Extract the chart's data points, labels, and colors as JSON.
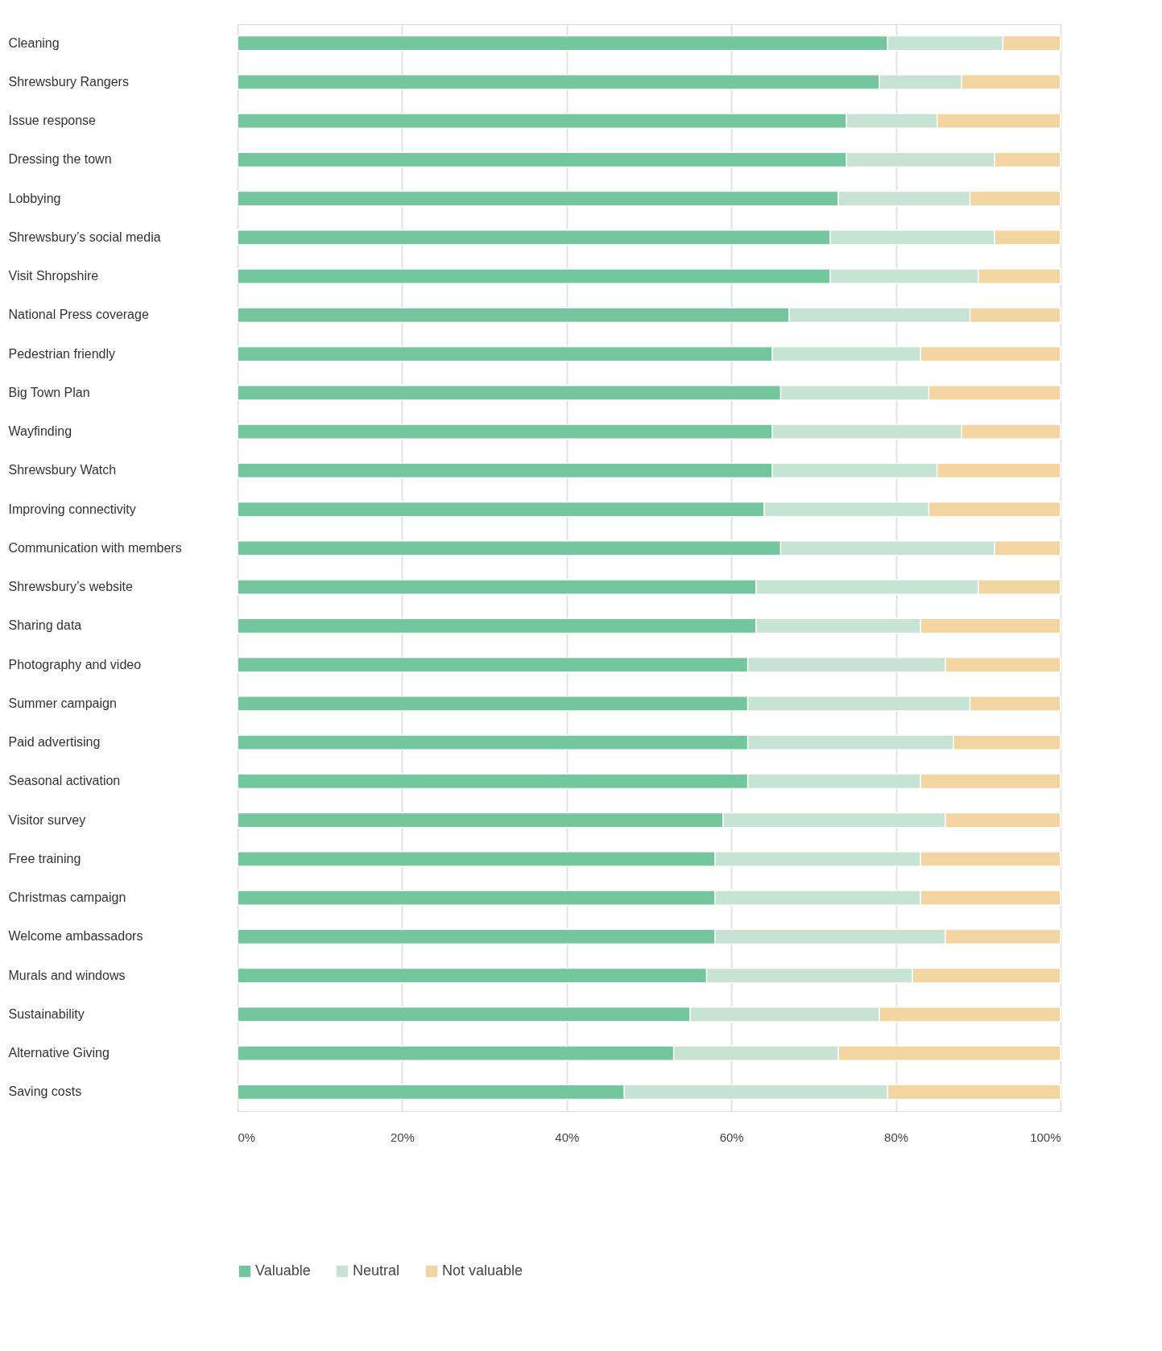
{
  "chart_data": {
    "type": "bar",
    "orientation": "horizontal",
    "stacked": true,
    "categories": [
      "Cleaning",
      "Shrewsbury Rangers",
      "Issue response",
      "Dressing the town",
      "Lobbying",
      "Shrewsbury’s social media",
      "Visit Shropshire",
      "National Press coverage",
      "Pedestrian friendly",
      "Big Town Plan",
      "Wayfinding",
      "Shrewsbury Watch",
      "Improving connectivity",
      "Communication with members",
      "Shrewsbury’s website",
      "Sharing data",
      "Photography and video",
      "Summer campaign",
      "Paid advertising",
      "Seasonal activation",
      "Visitor survey",
      "Free training",
      "Christmas campaign",
      "Welcome ambassadors",
      "Murals and windows",
      "Sustainability",
      "Alternative Giving",
      "Saving costs"
    ],
    "series": [
      {
        "name": "Valuable",
        "color": "#74c69d",
        "values": [
          79,
          78,
          74,
          74,
          73,
          72,
          72,
          67,
          65,
          66,
          65,
          65,
          64,
          66,
          63,
          63,
          62,
          62,
          62,
          62,
          59,
          58,
          58,
          58,
          57,
          55,
          53,
          47
        ]
      },
      {
        "name": "Neutral",
        "color": "#c6e3d3",
        "values": [
          14,
          10,
          11,
          18,
          16,
          20,
          18,
          22,
          18,
          18,
          23,
          20,
          20,
          26,
          27,
          20,
          24,
          27,
          25,
          21,
          27,
          25,
          25,
          28,
          25,
          23,
          20,
          32
        ]
      },
      {
        "name": "Not valuable",
        "color": "#f2d5a0",
        "values": [
          7,
          12,
          15,
          8,
          11,
          8,
          10,
          11,
          17,
          16,
          12,
          15,
          16,
          8,
          10,
          17,
          14,
          11,
          13,
          17,
          14,
          17,
          17,
          14,
          18,
          22,
          27,
          21
        ]
      }
    ],
    "xlim": [
      0,
      100
    ],
    "xticks": [
      {
        "value": 0,
        "label": "0%"
      },
      {
        "value": 20,
        "label": "20%"
      },
      {
        "value": 40,
        "label": "40%"
      },
      {
        "value": 60,
        "label": "60%"
      },
      {
        "value": 80,
        "label": "80%"
      },
      {
        "value": 100,
        "label": "100%"
      }
    ],
    "grid": "x",
    "legend": "bottom"
  }
}
